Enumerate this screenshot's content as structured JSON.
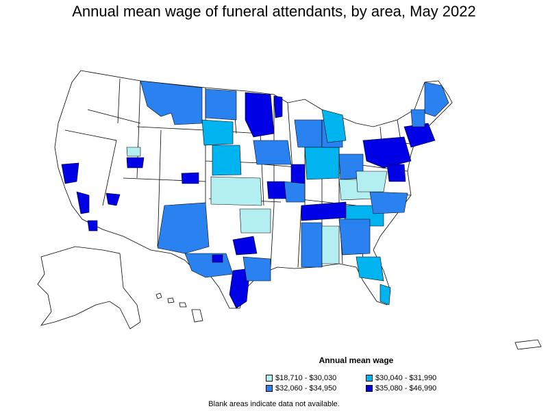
{
  "title": "Annual mean wage of funeral attendants, by area, May 2022",
  "legend": {
    "title": "Annual mean wage",
    "items": [
      {
        "label": "$18,710 - $30,030",
        "color": "#b3eef0"
      },
      {
        "label": "$30,040 - $31,990",
        "color": "#00b4f0"
      },
      {
        "label": "$32,060 - $34,950",
        "color": "#2a82f0"
      },
      {
        "label": "$35,080 - $46,990",
        "color": "#0000e6"
      }
    ]
  },
  "footnote": "Blank areas indicate data not available.",
  "colors": {
    "background": "#ffffff",
    "border": "#000000",
    "no_data": "#ffffff"
  }
}
